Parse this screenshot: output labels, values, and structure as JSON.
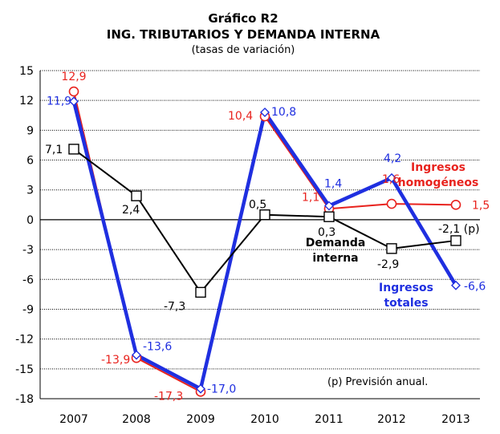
{
  "chart_data": {
    "type": "line",
    "title": "Gráfico R2",
    "subtitle": "ING. TRIBUTARIOS Y DEMANDA INTERNA",
    "subsubtitle": "(tasas de variación)",
    "categories": [
      "2007",
      "2008",
      "2009",
      "2010",
      "2011",
      "2012",
      "2013"
    ],
    "ylim": [
      -18,
      15
    ],
    "yticks": [
      15,
      12,
      9,
      6,
      3,
      0,
      -3,
      -6,
      -9,
      -12,
      -15,
      -18
    ],
    "grid": true,
    "series": [
      {
        "name_lines": [
          "Ingresos",
          "homogéneos"
        ],
        "color": "#e8231e",
        "values": [
          12.9,
          -13.9,
          -17.3,
          10.4,
          1.1,
          1.6,
          1.5
        ],
        "labels": [
          "12,9",
          "-13,9",
          "-17,3",
          "10,4",
          "1,1",
          "1,6",
          "1,5"
        ]
      },
      {
        "name_lines": [
          "Ingresos",
          "totales"
        ],
        "color": "#1f2fe0",
        "values": [
          11.9,
          -13.6,
          -17.0,
          10.8,
          1.4,
          4.2,
          -6.6
        ],
        "labels": [
          "11,9",
          "-13,6",
          "-17,0",
          "10,8",
          "1,4",
          "4,2",
          "-6,6"
        ]
      },
      {
        "name_lines": [
          "Demanda",
          "interna"
        ],
        "color": "#000000",
        "values": [
          7.1,
          2.4,
          -7.3,
          0.5,
          0.3,
          -2.9,
          -2.1
        ],
        "labels": [
          "7,1",
          "2,4",
          "-7,3",
          "0,5",
          "0,3",
          "-2,9",
          "-2,1 (p)"
        ]
      }
    ],
    "annotation": "(p) Previsión anual."
  }
}
